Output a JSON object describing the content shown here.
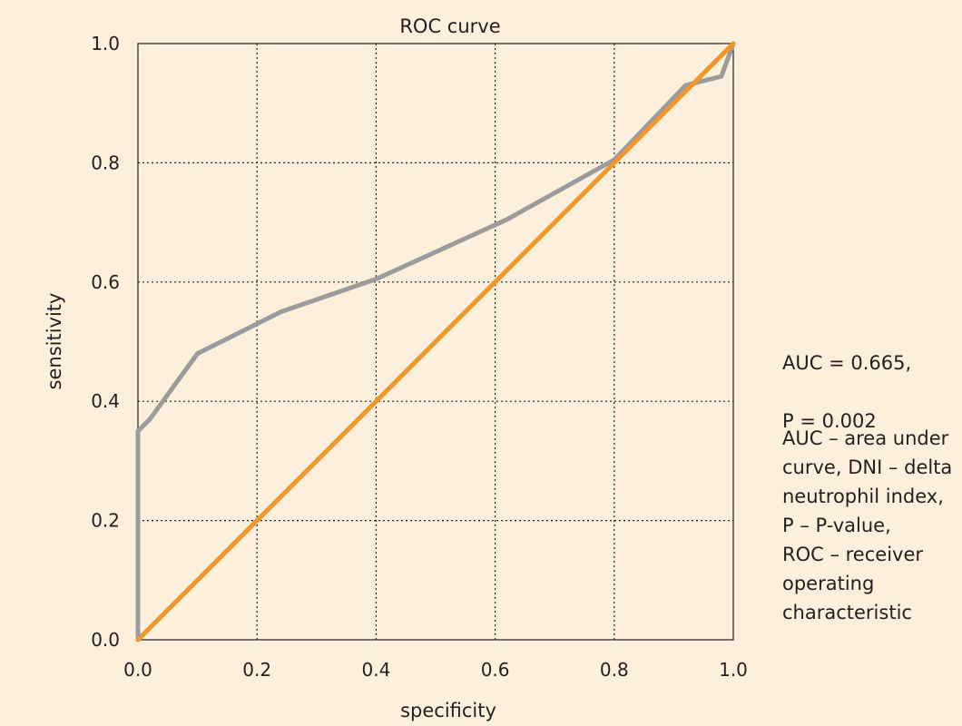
{
  "chart_data": {
    "type": "line",
    "title": "ROC curve",
    "xlabel": "specificity",
    "ylabel": "sensitivity",
    "xlim": [
      0,
      1
    ],
    "ylim": [
      0,
      1
    ],
    "xticks": [
      "0.0",
      "0.2",
      "0.4",
      "0.6",
      "0.8",
      "1.0"
    ],
    "yticks": [
      "0.0",
      "0.2",
      "0.4",
      "0.6",
      "0.8",
      "1.0"
    ],
    "grid": true,
    "series": [
      {
        "color": "#9b9b9b",
        "points": [
          [
            0.0,
            0.0
          ],
          [
            0.0,
            0.35
          ],
          [
            0.02,
            0.37
          ],
          [
            0.1,
            0.48
          ],
          [
            0.15,
            0.505
          ],
          [
            0.24,
            0.55
          ],
          [
            0.4,
            0.605
          ],
          [
            0.62,
            0.705
          ],
          [
            0.8,
            0.805
          ],
          [
            0.92,
            0.93
          ],
          [
            0.98,
            0.945
          ],
          [
            1.0,
            1.0
          ]
        ]
      },
      {
        "color": "#f0962a",
        "points": [
          [
            0.0,
            0.0
          ],
          [
            1.0,
            1.0
          ]
        ]
      }
    ]
  },
  "annotations": {
    "auc_line1": "AUC = 0.665,",
    "auc_line2": "P = 0.002",
    "abbreviations": "AUC – area under\ncurve, DNI – delta\nneutrophil index,\nP – P-value,\nROC – receiver\noperating\ncharacteristic"
  }
}
